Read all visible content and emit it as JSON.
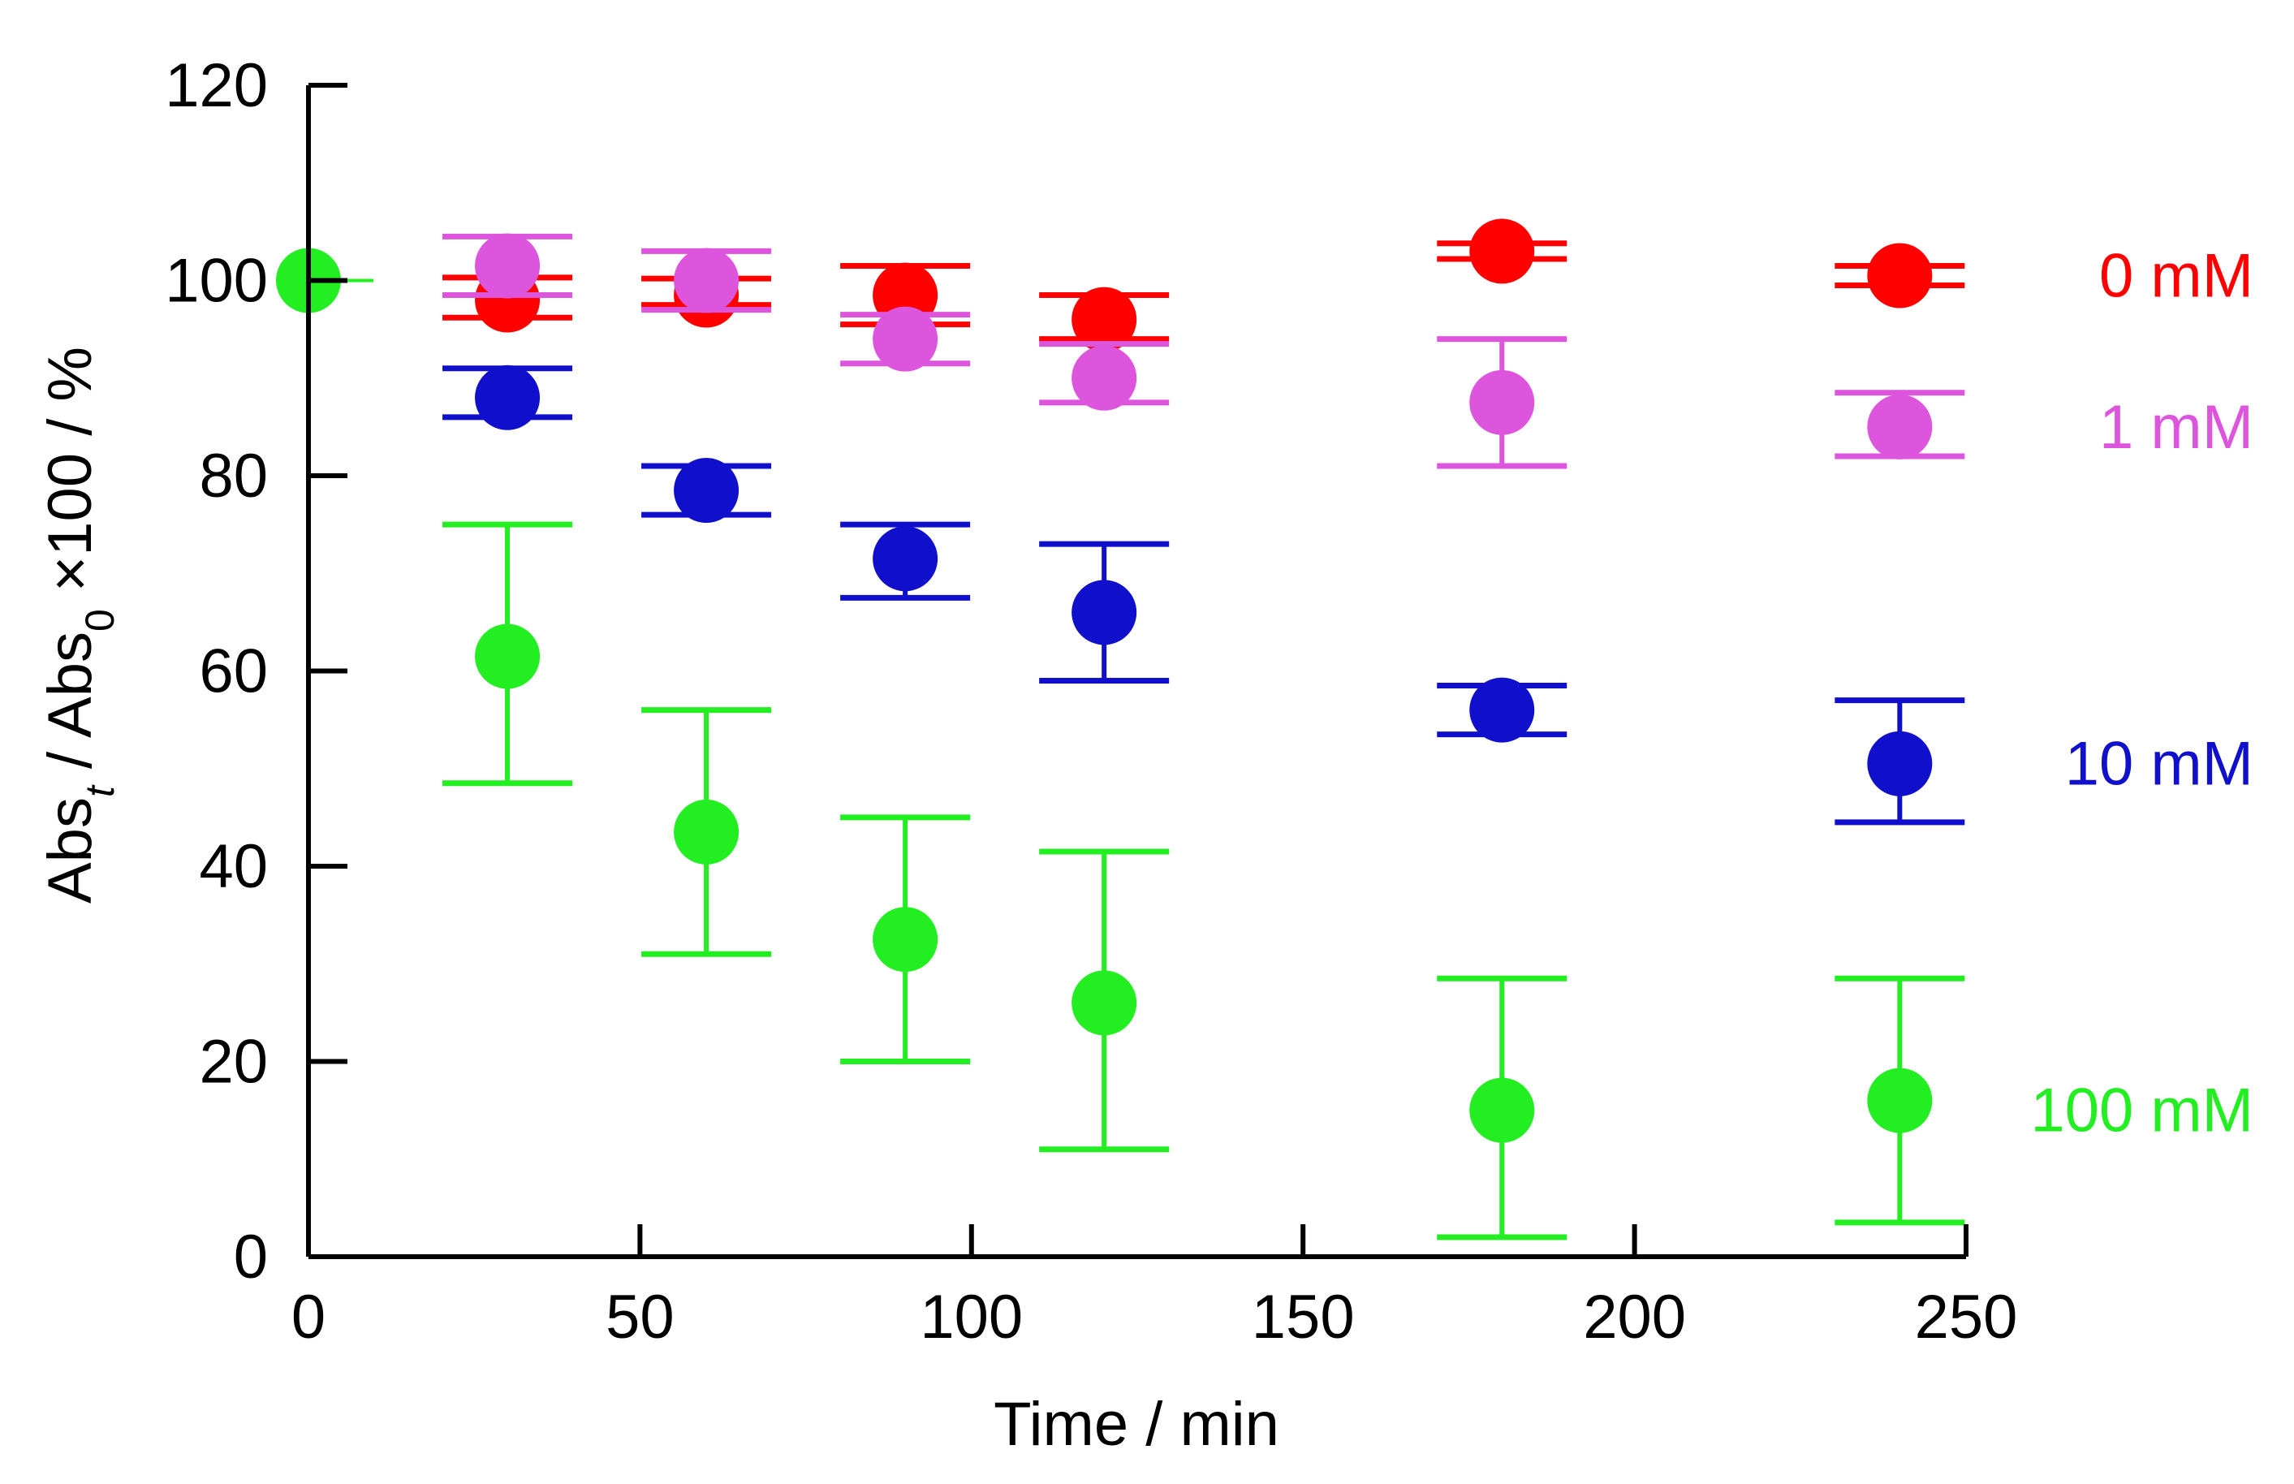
{
  "chart_data": {
    "type": "scatter",
    "title": "",
    "xlabel": "Time / min",
    "ylabel": {
      "parts": [
        {
          "text": "Abs",
          "sub": false
        },
        {
          "text": "t",
          "sub": true,
          "italic": true
        },
        {
          "text": " / Abs",
          "sub": false
        },
        {
          "text": "0",
          "sub": true
        },
        {
          "text": " ×100  / %",
          "sub": false
        }
      ]
    },
    "xlim": [
      0,
      250
    ],
    "ylim": [
      0,
      120
    ],
    "xticks": [
      0,
      50,
      100,
      150,
      200,
      250
    ],
    "yticks": [
      0,
      20,
      40,
      60,
      80,
      100,
      120
    ],
    "xtick_labels": [
      "0",
      "50",
      "100",
      "150",
      "200",
      "250"
    ],
    "ytick_labels": [
      "0",
      "20",
      "40",
      "60",
      "80",
      "100",
      "120"
    ],
    "grid": false,
    "legend_position": "right",
    "series": [
      {
        "name": "0 mM",
        "color": "#ff0000",
        "x": [
          30,
          60,
          90,
          120,
          180,
          240
        ],
        "y": [
          98.0,
          98.5,
          98.5,
          96.0,
          103.0,
          100.5
        ],
        "err_low": [
          96.2,
          97.5,
          95.5,
          94.0,
          102.2,
          99.5
        ],
        "err_high": [
          100.3,
          100.2,
          101.5,
          98.5,
          103.8,
          101.5
        ]
      },
      {
        "name": "1 mM",
        "color": "#dd55dd",
        "x": [
          30,
          60,
          90,
          120,
          180,
          240
        ],
        "y": [
          101.5,
          100.0,
          94.0,
          90.0,
          87.5,
          85.0
        ],
        "err_low": [
          98.5,
          97.0,
          91.5,
          87.5,
          81.0,
          82.0
        ],
        "err_high": [
          104.5,
          103.0,
          96.5,
          93.5,
          94.0,
          88.5
        ]
      },
      {
        "name": "10 mM",
        "color": "#1010cc",
        "x": [
          30,
          60,
          90,
          120,
          180,
          240
        ],
        "y": [
          88.0,
          78.5,
          71.5,
          66.0,
          56.0,
          50.5
        ],
        "err_low": [
          86.0,
          76.0,
          67.5,
          59.0,
          53.5,
          44.5
        ],
        "err_high": [
          91.0,
          81.0,
          75.0,
          73.0,
          58.5,
          57.0
        ]
      },
      {
        "name": "100 mM",
        "color": "#22ee22",
        "x": [
          0,
          30,
          60,
          90,
          120,
          180,
          240
        ],
        "y": [
          100.0,
          61.5,
          43.5,
          32.5,
          26.0,
          15.0,
          16.0
        ],
        "err_low": [
          100.0,
          48.5,
          31.0,
          20.0,
          11.0,
          2.0,
          3.5
        ],
        "err_high": [
          100.0,
          75.0,
          56.0,
          45.0,
          41.5,
          28.5,
          28.5
        ]
      }
    ],
    "annotations": [
      {
        "text": "0 mM",
        "color": "#ff0000",
        "y": 100.5
      },
      {
        "text": "1 mM",
        "color": "#dd55dd",
        "y": 85.0
      },
      {
        "text": "10 mM",
        "color": "#1010cc",
        "y": 50.5
      },
      {
        "text": "100 mM",
        "color": "#22ee22",
        "y": 15.0
      }
    ]
  }
}
